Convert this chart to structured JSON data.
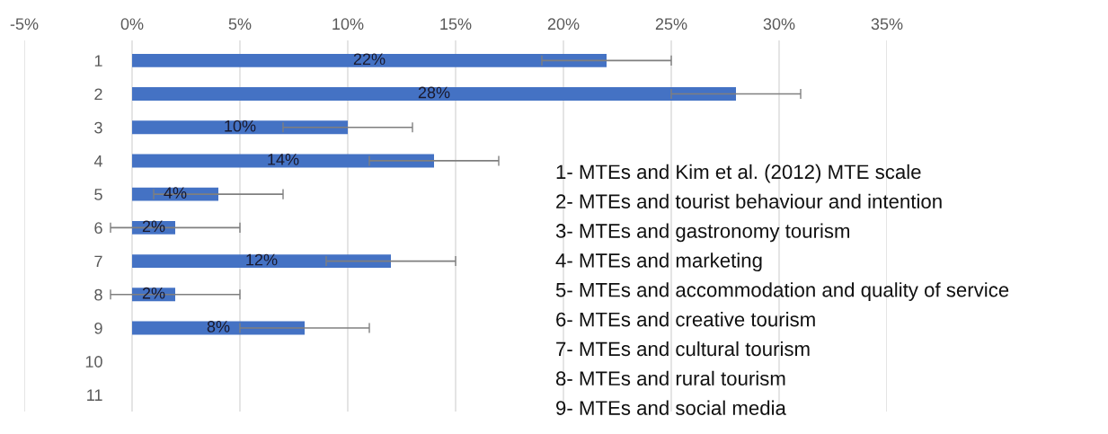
{
  "chart_data": {
    "type": "bar",
    "orientation": "horizontal",
    "categories": [
      "1",
      "2",
      "3",
      "4",
      "5",
      "6",
      "7",
      "8",
      "9",
      "10",
      "11"
    ],
    "values": [
      22,
      28,
      10,
      14,
      4,
      2,
      12,
      2,
      8,
      null,
      null
    ],
    "errors": [
      3,
      3,
      3,
      3,
      3,
      3,
      3,
      3,
      3,
      null,
      null
    ],
    "value_labels": [
      "22%",
      "28%",
      "10%",
      "14%",
      "4%",
      "2%",
      "12%",
      "2%",
      "8%",
      null,
      null
    ],
    "color": "#4472c4",
    "xlim": [
      -5,
      35
    ],
    "xticks": [
      {
        "value": -5,
        "label": "-5%"
      },
      {
        "value": 0,
        "label": "0%"
      },
      {
        "value": 5,
        "label": "5%"
      },
      {
        "value": 10,
        "label": "10%"
      },
      {
        "value": 15,
        "label": "15%"
      },
      {
        "value": 20,
        "label": "20%"
      },
      {
        "value": 25,
        "label": "25%"
      },
      {
        "value": 30,
        "label": "30%"
      },
      {
        "value": 35,
        "label": "35%"
      }
    ],
    "grid": "x",
    "annotations": [
      "1- MTEs and Kim et al. (2012) MTE scale",
      "2- MTEs and tourist behaviour and intention",
      "3- MTEs and gastronomy tourism",
      "4- MTEs and marketing",
      "5- MTEs and accommodation and quality of service",
      "6- MTEs and creative tourism",
      "7- MTEs and cultural tourism",
      "8- MTEs and rural tourism",
      "9- MTEs and social media"
    ]
  }
}
